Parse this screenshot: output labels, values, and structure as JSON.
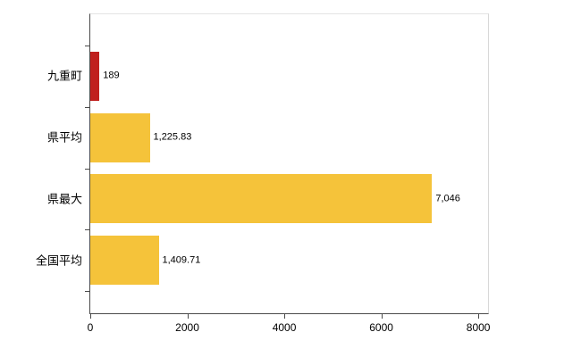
{
  "chart_data": {
    "type": "bar",
    "orientation": "horizontal",
    "title": "",
    "xlabel": "",
    "ylabel": "",
    "categories": [
      "九重町",
      "県平均",
      "県最大",
      "全国平均"
    ],
    "values": [
      189,
      1225.83,
      7046,
      1409.71
    ],
    "value_labels": [
      "189",
      "1,225.83",
      "7,046",
      "1,409.71"
    ],
    "series": [
      {
        "name": "value",
        "values": [
          189,
          1225.83,
          7046,
          1409.71
        ]
      }
    ],
    "bar_colors": [
      "#c0201e",
      "#f5c33a",
      "#f5c33a",
      "#f5c33a"
    ],
    "highlight_color": "#c0201e",
    "default_bar_color": "#f5c33a",
    "xlim": [
      0,
      8200
    ],
    "x_ticks": [
      0,
      2000,
      4000,
      6000,
      8000
    ],
    "x_tick_labels": [
      "0",
      "2000",
      "4000",
      "6000",
      "8000"
    ],
    "grid": false,
    "legend": false,
    "axis_color": "#4a4a4a",
    "background_color": "#ffffff"
  }
}
